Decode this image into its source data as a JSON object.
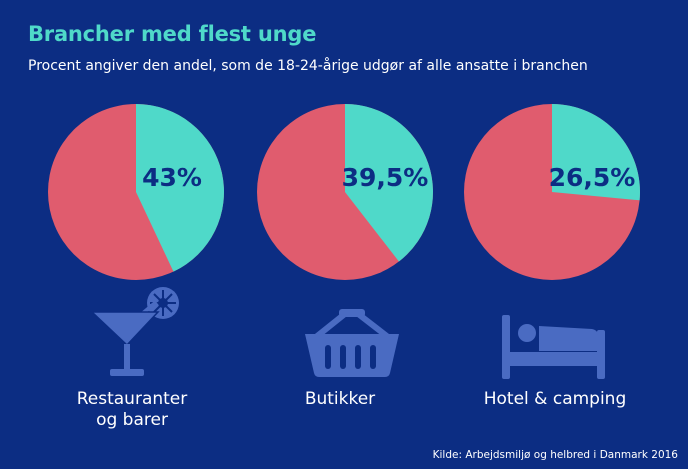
{
  "title": "Brancher med flest unge",
  "subtitle": "Procent angiver den andel, som de 18-24-årige udgør af alle ansatte i branchen",
  "source": "Kilde: Arbejdsmiljø og helbred i Danmark 2016",
  "colors": {
    "background": "#0c2d83",
    "young": "#4fd9c9",
    "rest": "#e05c6e",
    "icon": "#4a6bc2",
    "label_text": "#0c2d83"
  },
  "chart_data": [
    {
      "type": "pie",
      "category": "Restauranter og barer",
      "label_lines": [
        "Restauranter",
        "og barer"
      ],
      "value": 43,
      "value_label": "43%",
      "icon": "cocktail-glass-icon"
    },
    {
      "type": "pie",
      "category": "Butikker",
      "label_lines": [
        "Butikker"
      ],
      "value": 39.5,
      "value_label": "39,5%",
      "icon": "shopping-basket-icon"
    },
    {
      "type": "pie",
      "category": "Hotel & camping",
      "label_lines": [
        "Hotel & camping"
      ],
      "value": 26.5,
      "value_label": "26,5%",
      "icon": "bed-icon"
    }
  ]
}
